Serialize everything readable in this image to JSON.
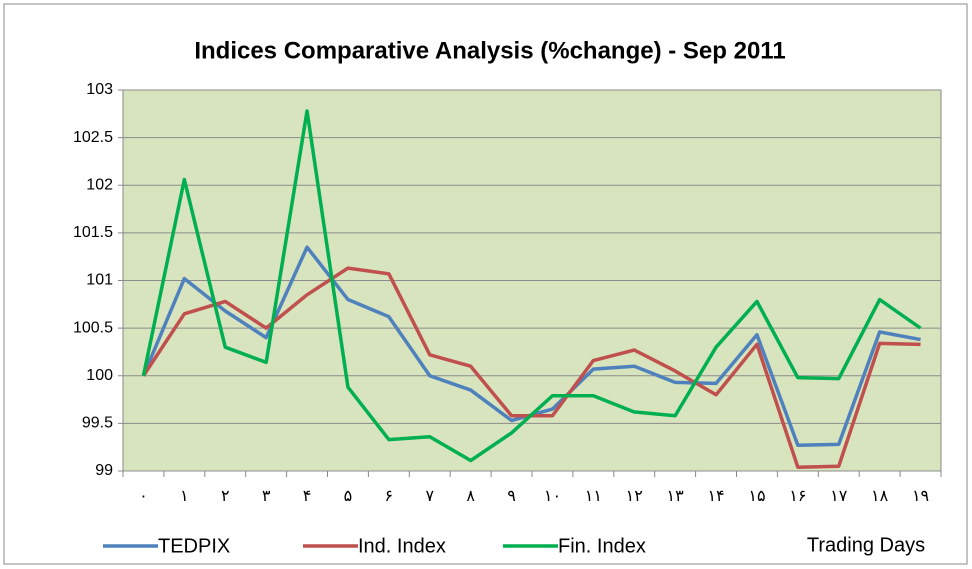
{
  "chart_data": {
    "type": "line",
    "title": "Indices Comparative Analysis (%change) - Sep 2011",
    "x_label": "Trading Days",
    "categories": [
      "۰",
      "۱",
      "۲",
      "۳",
      "۴",
      "۵",
      "۶",
      "۷",
      "۸",
      "۹",
      "۱۰",
      "۱۱",
      "۱۲",
      "۱۳",
      "۱۴",
      "۱۵",
      "۱۶",
      "۱۷",
      "۱۸",
      "۱۹"
    ],
    "series": [
      {
        "name": "TEDPIX",
        "color": "#4f81bd",
        "values": [
          100,
          101.02,
          100.68,
          100.4,
          101.35,
          100.8,
          100.62,
          100.0,
          99.85,
          99.53,
          99.65,
          100.07,
          100.1,
          99.93,
          99.92,
          100.43,
          99.27,
          99.28,
          100.46,
          100.38
        ]
      },
      {
        "name": "Ind. Index",
        "color": "#c0504d",
        "values": [
          100,
          100.65,
          100.78,
          100.5,
          100.85,
          101.13,
          101.07,
          100.22,
          100.1,
          99.58,
          99.58,
          100.16,
          100.27,
          100.05,
          99.8,
          100.33,
          99.04,
          99.05,
          100.34,
          100.33
        ]
      },
      {
        "name": "Fin. Index",
        "color": "#00b050",
        "values": [
          100,
          102.06,
          100.3,
          100.14,
          102.78,
          99.88,
          99.33,
          99.36,
          99.11,
          99.4,
          99.79,
          99.79,
          99.62,
          99.58,
          100.3,
          100.78,
          99.98,
          99.97,
          100.8,
          100.5
        ]
      }
    ],
    "ylim": [
      99,
      103
    ],
    "yticks": [
      99,
      99.5,
      100,
      100.5,
      101,
      101.5,
      102,
      102.5,
      103
    ],
    "grid": true,
    "legend": "bottom",
    "plot_background": "#d7e4bd"
  }
}
